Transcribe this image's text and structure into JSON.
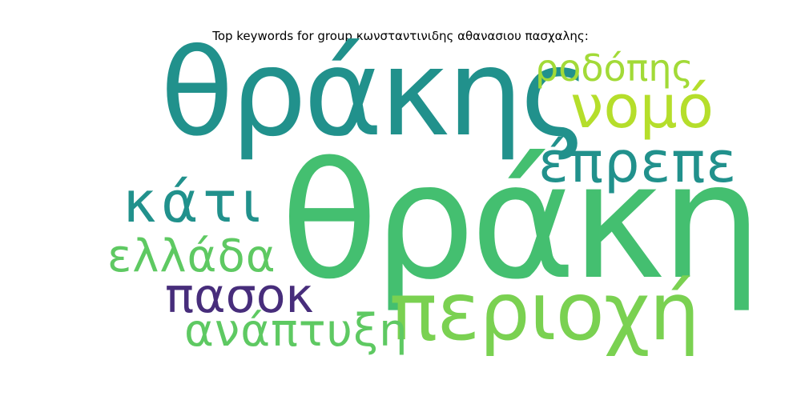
{
  "title": "Top keywords for group κωνσταντινιδης αθανασιου πασχαλης:",
  "words": [
    {
      "text": "θράκη",
      "color": "#44bf70"
    },
    {
      "text": "θράκης",
      "color": "#21918c"
    },
    {
      "text": "περιοχή",
      "color": "#7ad151"
    },
    {
      "text": "νομό",
      "color": "#b5de2b"
    },
    {
      "text": "έπρεπε",
      "color": "#21918c"
    },
    {
      "text": "κάτι",
      "color": "#21918c"
    },
    {
      "text": "ροδόπης",
      "color": "#a2da37"
    },
    {
      "text": "ελλάδα",
      "color": "#5ec962"
    },
    {
      "text": "πασοκ",
      "color": "#472d7b"
    },
    {
      "text": "ανάπτυξη",
      "color": "#5ec962"
    }
  ]
}
